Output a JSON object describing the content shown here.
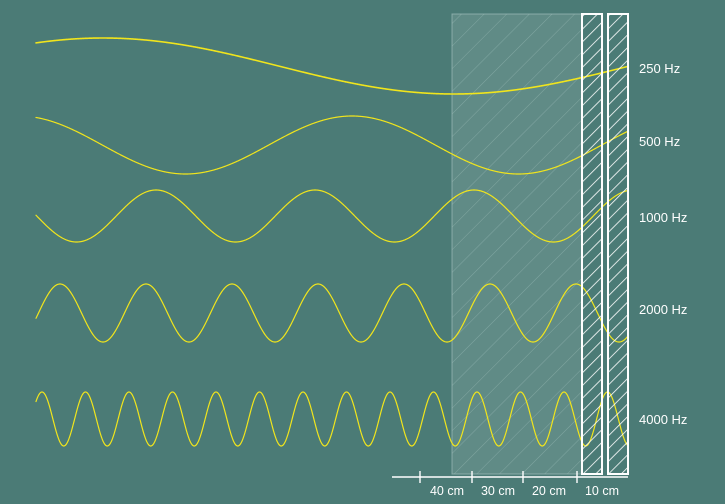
{
  "colors": {
    "background": "#4b7b76",
    "wave": "#f1e51c",
    "panel_outline": "#ffffff",
    "label_text": "#ffffff"
  },
  "waves": [
    {
      "label": "250 Hz"
    },
    {
      "label": "500 Hz"
    },
    {
      "label": "1000 Hz"
    },
    {
      "label": "2000 Hz"
    },
    {
      "label": "4000 Hz"
    }
  ],
  "scale": {
    "ticks": [
      "40 cm",
      "30 cm",
      "20 cm",
      "10 cm"
    ]
  }
}
